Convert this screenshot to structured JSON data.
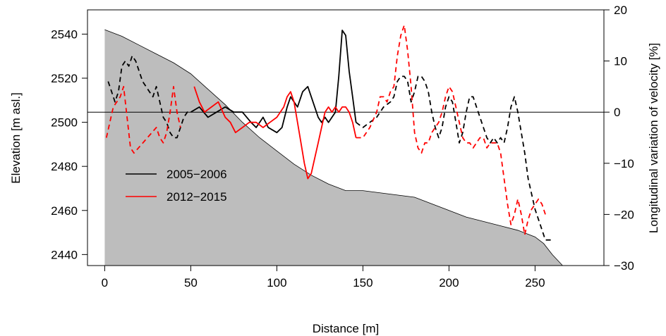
{
  "chart_data": {
    "type": "line",
    "xlabel": "Distance [m]",
    "ylabel_left": "Elevation [m asl.]",
    "ylabel_right": "Longitudinal variation of velocity [%]",
    "xlim": [
      -10,
      290
    ],
    "ylim_left": [
      2435,
      2551
    ],
    "ylim_right": [
      -30,
      20
    ],
    "x_ticks": [
      0,
      50,
      100,
      150,
      200,
      250
    ],
    "y_left_ticks": [
      2440,
      2460,
      2480,
      2500,
      2520,
      2540
    ],
    "y_right_ticks": [
      -30,
      -20,
      -10,
      0,
      10,
      20
    ],
    "zero_line_right": 0,
    "grid": false,
    "legend_position": "left",
    "colors": {
      "terrain_fill": "#bdbdbd",
      "s2005": "#000000",
      "s2012": "#ff0000"
    },
    "terrain_profile": {
      "name": "elevation",
      "points": [
        [
          0,
          2542
        ],
        [
          10,
          2539
        ],
        [
          20,
          2535
        ],
        [
          30,
          2531
        ],
        [
          40,
          2527
        ],
        [
          50,
          2522
        ],
        [
          60,
          2515
        ],
        [
          70,
          2508
        ],
        [
          80,
          2500
        ],
        [
          90,
          2493
        ],
        [
          100,
          2487
        ],
        [
          110,
          2481
        ],
        [
          120,
          2476
        ],
        [
          130,
          2472
        ],
        [
          140,
          2469
        ],
        [
          150,
          2469
        ],
        [
          160,
          2468
        ],
        [
          170,
          2467
        ],
        [
          180,
          2466
        ],
        [
          190,
          2463
        ],
        [
          200,
          2460
        ],
        [
          210,
          2457
        ],
        [
          220,
          2455
        ],
        [
          230,
          2453
        ],
        [
          240,
          2451
        ],
        [
          250,
          2448
        ],
        [
          255,
          2445
        ],
        [
          260,
          2440
        ],
        [
          266,
          2435
        ]
      ]
    },
    "series": [
      {
        "name": "2005−2006",
        "segments": [
          {
            "style": "dashed",
            "points": [
              [
                2,
                6
              ],
              [
                4,
                4
              ],
              [
                6,
                2
              ],
              [
                8,
                4
              ],
              [
                10,
                9
              ],
              [
                12,
                10
              ],
              [
                14,
                9
              ],
              [
                16,
                11
              ],
              [
                18,
                10
              ],
              [
                20,
                8
              ],
              [
                22,
                6
              ],
              [
                24,
                5
              ],
              [
                26,
                4
              ],
              [
                28,
                3
              ],
              [
                30,
                5
              ],
              [
                32,
                2
              ],
              [
                34,
                -1
              ],
              [
                36,
                -2
              ],
              [
                38,
                -4
              ],
              [
                40,
                -5
              ],
              [
                42,
                -5
              ],
              [
                44,
                -3
              ],
              [
                46,
                -1
              ],
              [
                48,
                0
              ],
              [
                50,
                0
              ]
            ]
          },
          {
            "style": "solid",
            "points": [
              [
                50,
                0
              ],
              [
                55,
                1
              ],
              [
                60,
                -1
              ],
              [
                65,
                0
              ],
              [
                70,
                1
              ],
              [
                75,
                0
              ],
              [
                80,
                0
              ],
              [
                85,
                -2
              ],
              [
                88,
                -3
              ],
              [
                92,
                -1
              ],
              [
                95,
                -3
              ],
              [
                100,
                -4
              ],
              [
                103,
                -3
              ],
              [
                106,
                1
              ],
              [
                108,
                3
              ],
              [
                110,
                2
              ],
              [
                112,
                1
              ],
              [
                115,
                4
              ],
              [
                118,
                5
              ],
              [
                120,
                3
              ],
              [
                122,
                1
              ],
              [
                124,
                -1
              ],
              [
                126,
                -2
              ],
              [
                128,
                -1
              ],
              [
                130,
                -2
              ],
              [
                132,
                -1
              ],
              [
                134,
                0
              ],
              [
                136,
                7
              ],
              [
                138,
                16
              ],
              [
                140,
                15
              ],
              [
                142,
                8
              ],
              [
                144,
                3
              ],
              [
                146,
                -2
              ]
            ]
          },
          {
            "style": "dashed",
            "points": [
              [
                146,
                -2
              ],
              [
                150,
                -3
              ],
              [
                154,
                -2
              ],
              [
                158,
                -1
              ],
              [
                162,
                1
              ],
              [
                166,
                2
              ],
              [
                168,
                3
              ],
              [
                170,
                6
              ],
              [
                172,
                7
              ],
              [
                174,
                7
              ],
              [
                176,
                6
              ],
              [
                178,
                2
              ],
              [
                180,
                4
              ],
              [
                182,
                7
              ],
              [
                184,
                7
              ],
              [
                186,
                6
              ],
              [
                188,
                4
              ],
              [
                190,
                0
              ],
              [
                192,
                -3
              ],
              [
                194,
                -5
              ],
              [
                196,
                -3
              ],
              [
                198,
                1
              ],
              [
                200,
                3
              ],
              [
                202,
                2
              ],
              [
                204,
                -2
              ],
              [
                206,
                -6
              ],
              [
                208,
                -4
              ],
              [
                210,
                0
              ],
              [
                212,
                3
              ],
              [
                214,
                3
              ],
              [
                216,
                1
              ],
              [
                218,
                -1
              ],
              [
                220,
                -3
              ],
              [
                222,
                -5
              ],
              [
                224,
                -6
              ],
              [
                226,
                -5
              ],
              [
                228,
                -6
              ],
              [
                230,
                -5
              ],
              [
                232,
                -6
              ],
              [
                234,
                -3
              ],
              [
                236,
                1
              ],
              [
                238,
                3
              ],
              [
                240,
                0
              ],
              [
                242,
                -4
              ],
              [
                244,
                -8
              ],
              [
                246,
                -13
              ],
              [
                248,
                -16
              ],
              [
                250,
                -19
              ],
              [
                252,
                -21
              ],
              [
                254,
                -23
              ],
              [
                256,
                -25
              ],
              [
                258,
                -25
              ],
              [
                260,
                -25
              ]
            ]
          }
        ]
      },
      {
        "name": "2012−2015",
        "segments": [
          {
            "style": "dashed",
            "points": [
              [
                1,
                -5
              ],
              [
                3,
                -2
              ],
              [
                5,
                1
              ],
              [
                7,
                2
              ],
              [
                9,
                3
              ],
              [
                11,
                5
              ],
              [
                13,
                -1
              ],
              [
                15,
                -7
              ],
              [
                17,
                -8
              ],
              [
                30,
                -3
              ],
              [
                32,
                -5
              ],
              [
                34,
                -6
              ],
              [
                36,
                -4
              ],
              [
                38,
                0
              ],
              [
                40,
                5
              ],
              [
                42,
                0
              ],
              [
                44,
                -3
              ]
            ]
          },
          {
            "style": "solid",
            "points": [
              [
                52,
                5
              ],
              [
                55,
                2
              ],
              [
                58,
                0
              ],
              [
                62,
                1
              ],
              [
                66,
                2
              ],
              [
                70,
                -1
              ],
              [
                73,
                -2
              ],
              [
                76,
                -4
              ],
              [
                80,
                -3
              ],
              [
                84,
                -2
              ],
              [
                88,
                -2
              ],
              [
                92,
                -3
              ],
              [
                96,
                -2
              ],
              [
                100,
                -1
              ],
              [
                104,
                1
              ],
              [
                106,
                3
              ],
              [
                108,
                4
              ],
              [
                110,
                2
              ],
              [
                112,
                -2
              ],
              [
                114,
                -6
              ],
              [
                116,
                -10
              ],
              [
                118,
                -13
              ],
              [
                120,
                -12
              ],
              [
                122,
                -9
              ],
              [
                124,
                -6
              ],
              [
                126,
                -3
              ],
              [
                128,
                0
              ],
              [
                130,
                1
              ],
              [
                132,
                0
              ],
              [
                134,
                1
              ],
              [
                136,
                0
              ],
              [
                138,
                1
              ],
              [
                140,
                1
              ],
              [
                142,
                0
              ],
              [
                144,
                -2
              ],
              [
                146,
                -5
              ]
            ]
          },
          {
            "style": "dashed",
            "points": [
              [
                146,
                -5
              ],
              [
                150,
                -5
              ],
              [
                154,
                -3
              ],
              [
                158,
                0
              ],
              [
                160,
                3
              ],
              [
                162,
                3
              ],
              [
                164,
                2
              ],
              [
                166,
                4
              ],
              [
                168,
                5
              ],
              [
                170,
                11
              ],
              [
                172,
                15
              ],
              [
                174,
                17
              ],
              [
                176,
                12
              ],
              [
                178,
                5
              ],
              [
                180,
                -4
              ],
              [
                182,
                -7
              ],
              [
                184,
                -8
              ],
              [
                186,
                -6
              ],
              [
                188,
                -6
              ],
              [
                190,
                -4
              ],
              [
                192,
                -3
              ],
              [
                194,
                -2
              ],
              [
                196,
                0
              ],
              [
                198,
                3
              ],
              [
                200,
                5
              ],
              [
                202,
                4
              ],
              [
                204,
                1
              ],
              [
                206,
                -2
              ],
              [
                208,
                -5
              ],
              [
                210,
                -6
              ],
              [
                212,
                -6
              ],
              [
                214,
                -7
              ],
              [
                216,
                -6
              ],
              [
                218,
                -5
              ],
              [
                220,
                -5
              ],
              [
                222,
                -7
              ],
              [
                224,
                -6
              ],
              [
                226,
                -6
              ],
              [
                228,
                -6
              ],
              [
                230,
                -8
              ],
              [
                232,
                -13
              ],
              [
                234,
                -18
              ],
              [
                236,
                -22
              ],
              [
                238,
                -20
              ],
              [
                240,
                -17
              ],
              [
                242,
                -20
              ],
              [
                244,
                -24
              ],
              [
                246,
                -21
              ],
              [
                248,
                -19
              ],
              [
                250,
                -18
              ],
              [
                252,
                -17
              ],
              [
                254,
                -18
              ],
              [
                256,
                -20
              ]
            ]
          }
        ]
      }
    ]
  }
}
